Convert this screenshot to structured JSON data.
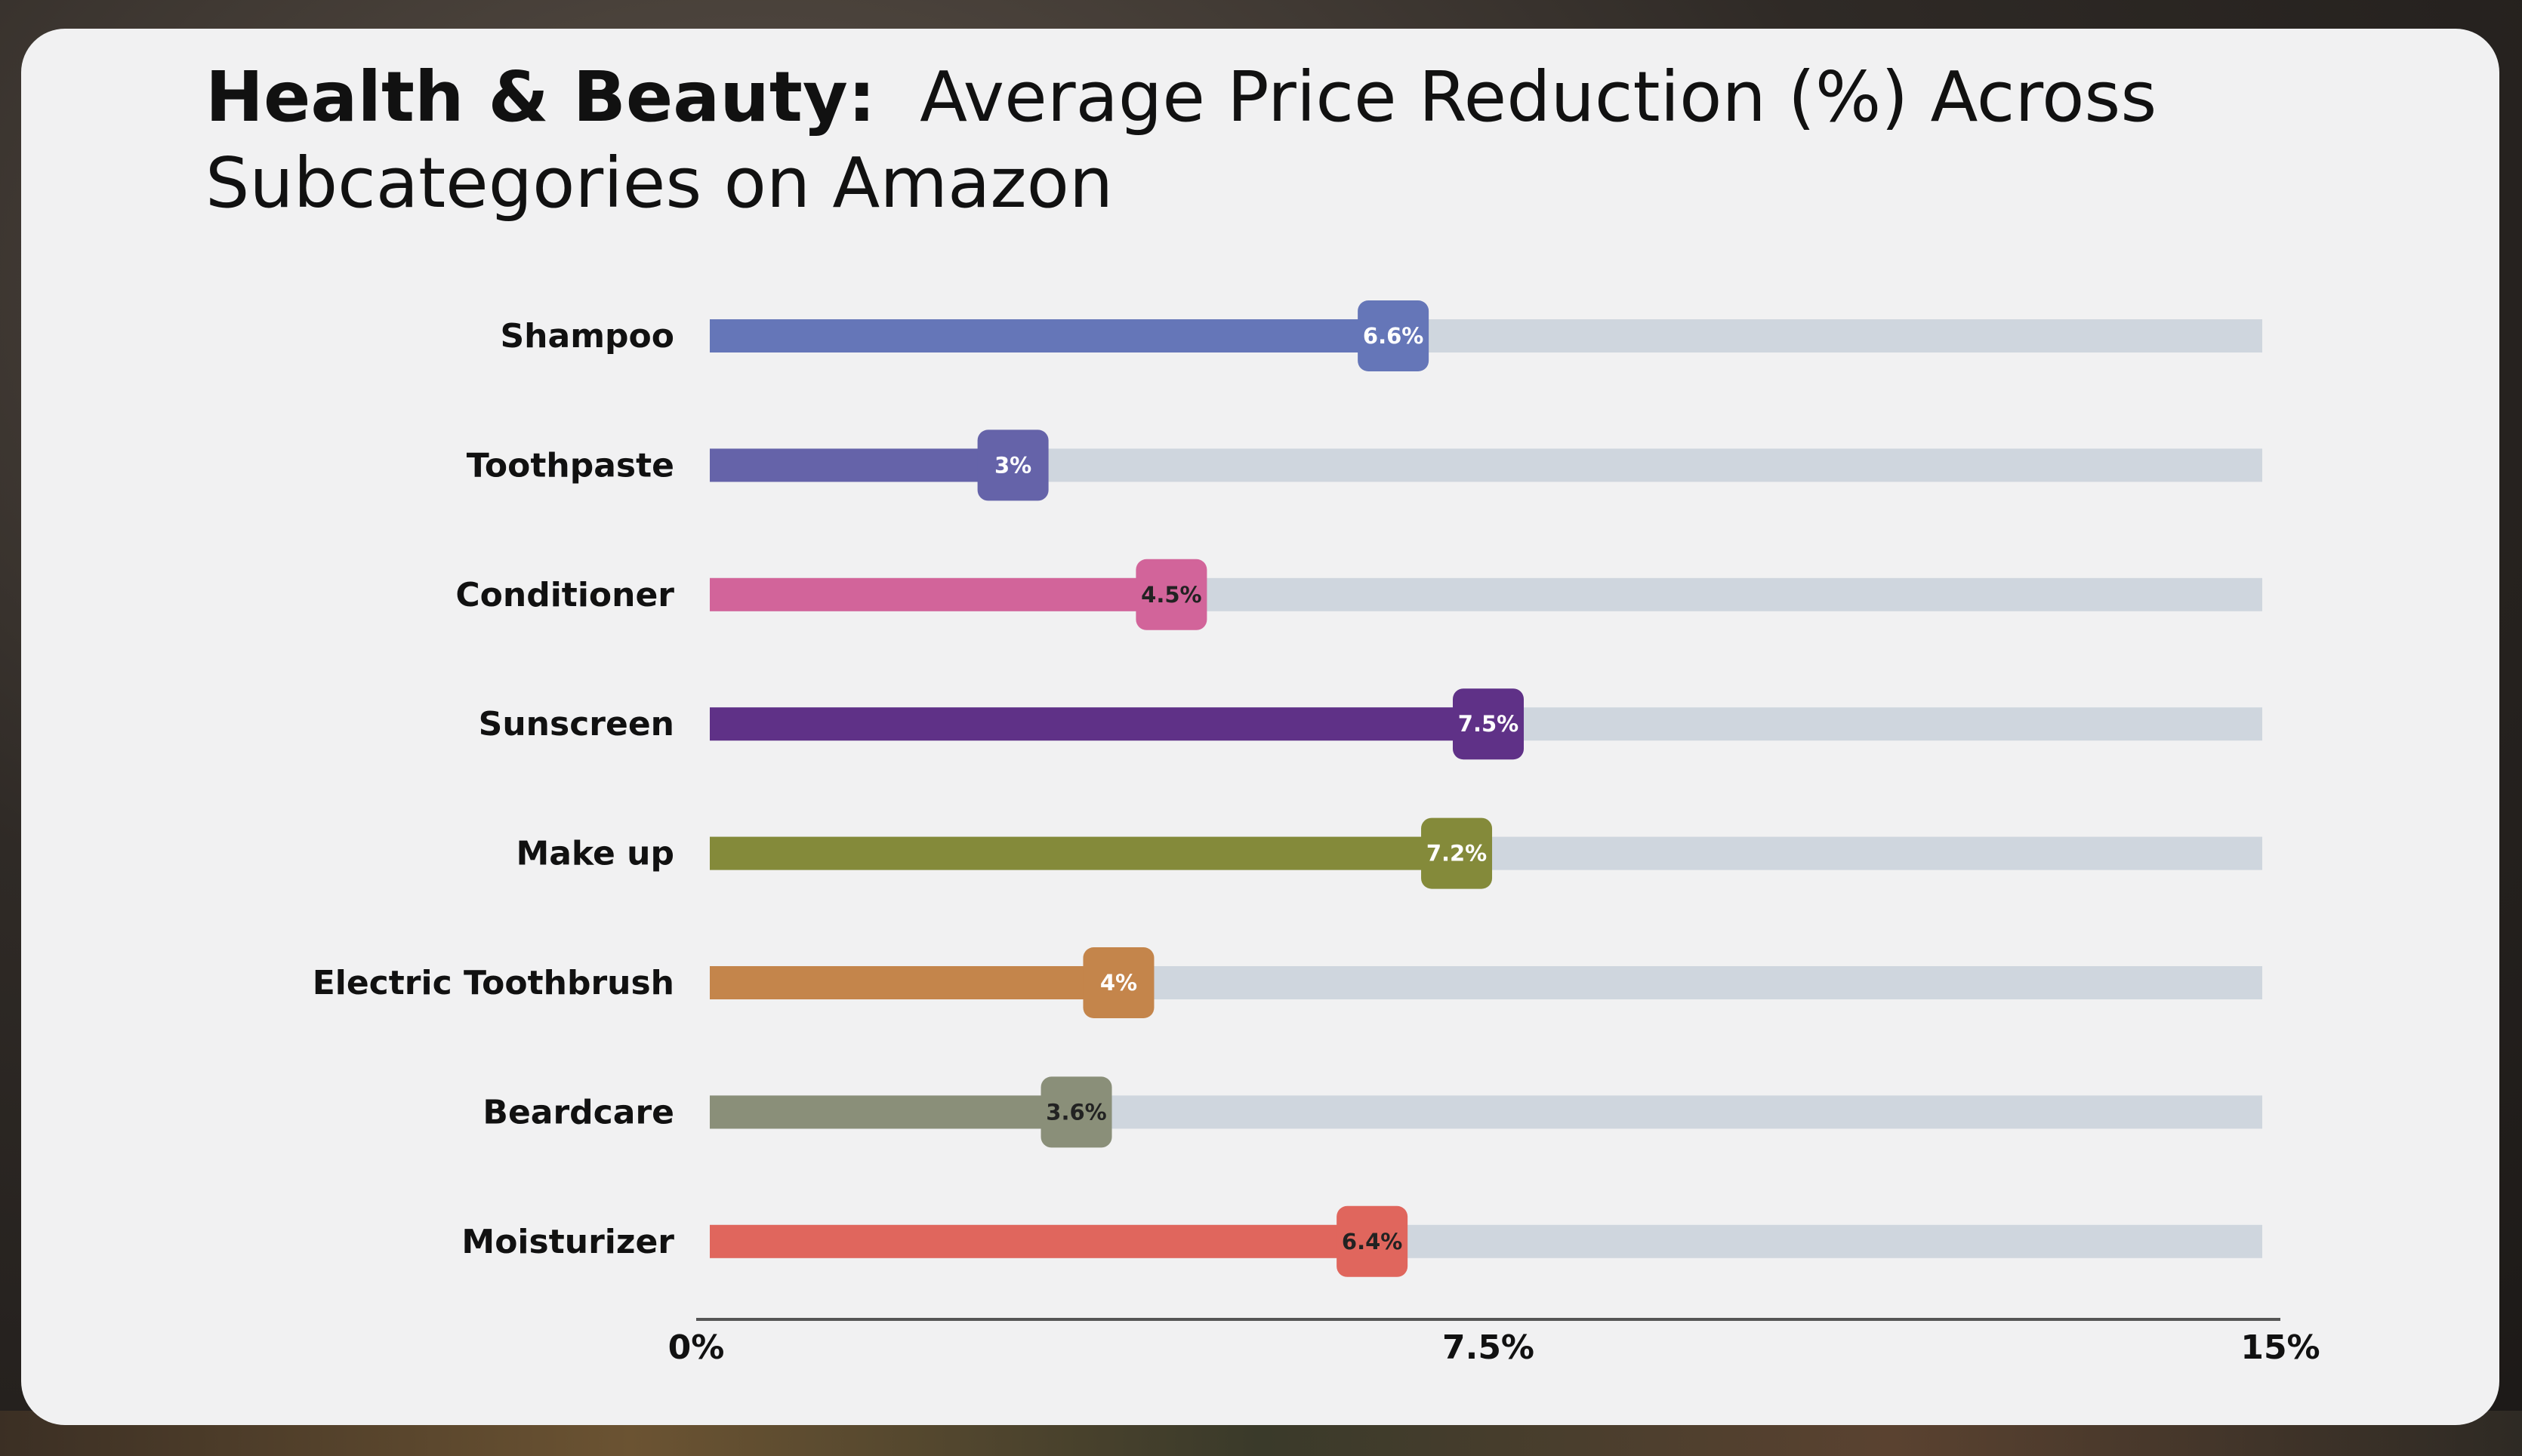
{
  "title": {
    "bold": "Health & Beauty:",
    "regular": "Average Price Reduction (%) Across Subcategories on Amazon"
  },
  "chart_data": {
    "type": "bar",
    "orientation": "horizontal",
    "title": "Health & Beauty: Average Price Reduction (%) Across Subcategories on Amazon",
    "categories": [
      "Shampoo",
      "Toothpaste",
      "Conditioner",
      "Sunscreen",
      "Make up",
      "Electric Toothbrush",
      "Beardcare",
      "Moisturizer"
    ],
    "values": [
      6.6,
      3,
      4.5,
      7.5,
      7.2,
      4,
      3.6,
      6.4
    ],
    "value_labels": [
      "6.6%",
      "3%",
      "4.5%",
      "7.5%",
      "7.2%",
      "4%",
      "3.6%",
      "6.4%"
    ],
    "colors": [
      "#6576b8",
      "#6563a9",
      "#d2649a",
      "#5f3187",
      "#848a3a",
      "#c4854b",
      "#8a8f79",
      "#e0665d"
    ],
    "label_text_colors": [
      "#ffffff",
      "#ffffff",
      "#222222",
      "#ffffff",
      "#ffffff",
      "#ffffff",
      "#222222",
      "#222222"
    ],
    "track_color": "#cfd6de",
    "xlim": [
      0,
      15
    ],
    "xticks": [
      0,
      7.5,
      15
    ],
    "xtick_labels": [
      "0%",
      "7.5%",
      "15%"
    ],
    "xlabel": "",
    "ylabel": "",
    "grid": false,
    "legend": "none"
  }
}
